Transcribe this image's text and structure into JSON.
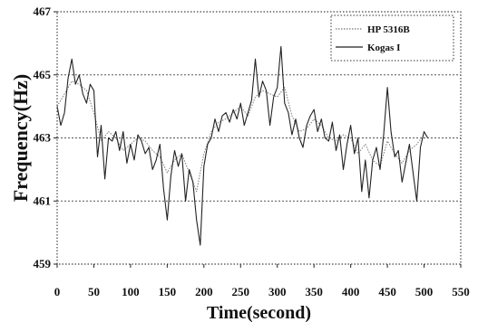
{
  "chart_data": {
    "type": "line",
    "title": "",
    "xlabel": "Time(second)",
    "ylabel": "Frequency(Hz)",
    "xlim": [
      0,
      550
    ],
    "ylim": [
      459,
      467
    ],
    "x_ticks": [
      0,
      50,
      100,
      150,
      200,
      250,
      300,
      350,
      400,
      450,
      500,
      550
    ],
    "y_ticks": [
      459,
      461,
      463,
      465,
      467
    ],
    "grid": "horizontal dashed at y tick values",
    "legend_position": "top-right",
    "series": [
      {
        "name": "HP 5316B",
        "style": "dotted",
        "color": "#777777",
        "x": [
          0,
          10,
          20,
          30,
          40,
          50,
          60,
          70,
          80,
          90,
          100,
          110,
          120,
          130,
          140,
          150,
          160,
          170,
          180,
          190,
          200,
          210,
          220,
          230,
          240,
          250,
          260,
          270,
          280,
          290,
          300,
          310,
          320,
          330,
          340,
          350,
          360,
          370,
          380,
          390,
          400,
          410,
          420,
          430,
          440,
          450,
          460,
          470,
          480,
          490,
          500
        ],
        "y": [
          464.0,
          464.4,
          464.8,
          464.7,
          464.5,
          463.8,
          462.9,
          463.2,
          463.0,
          462.6,
          462.8,
          463.0,
          462.9,
          462.6,
          462.4,
          461.9,
          462.3,
          462.5,
          461.9,
          461.3,
          462.5,
          463.2,
          463.5,
          463.6,
          463.8,
          464.0,
          463.7,
          464.3,
          464.5,
          464.4,
          464.3,
          464.6,
          463.7,
          463.2,
          463.3,
          463.6,
          463.4,
          463.0,
          462.9,
          463.1,
          463.0,
          462.5,
          462.8,
          462.3,
          462.1,
          462.9,
          462.5,
          462.2,
          462.6,
          462.8,
          463.1
        ]
      },
      {
        "name": "Kogas I",
        "style": "solid",
        "color": "#222222",
        "x": [
          0,
          5,
          10,
          15,
          20,
          25,
          30,
          35,
          40,
          45,
          50,
          55,
          60,
          65,
          70,
          75,
          80,
          85,
          90,
          95,
          100,
          105,
          110,
          115,
          120,
          125,
          130,
          135,
          140,
          145,
          150,
          155,
          160,
          165,
          170,
          175,
          180,
          185,
          190,
          195,
          200,
          205,
          210,
          215,
          220,
          225,
          230,
          235,
          240,
          245,
          250,
          255,
          260,
          265,
          270,
          275,
          280,
          285,
          290,
          295,
          300,
          305,
          310,
          315,
          320,
          325,
          330,
          335,
          340,
          345,
          350,
          355,
          360,
          365,
          370,
          375,
          380,
          385,
          390,
          395,
          400,
          405,
          410,
          415,
          420,
          425,
          430,
          435,
          440,
          445,
          450,
          455,
          460,
          465,
          470,
          475,
          480,
          485,
          490,
          495,
          500,
          505
        ],
        "y": [
          464.0,
          463.4,
          463.8,
          464.9,
          465.5,
          464.7,
          465.0,
          464.4,
          464.1,
          464.7,
          464.5,
          462.4,
          463.4,
          461.7,
          463.0,
          462.9,
          463.2,
          462.6,
          463.2,
          462.2,
          462.8,
          462.3,
          463.1,
          462.9,
          462.5,
          462.7,
          462.0,
          462.3,
          462.8,
          461.4,
          460.4,
          461.8,
          462.6,
          462.1,
          462.5,
          461.0,
          462.0,
          461.6,
          460.4,
          459.6,
          462.1,
          462.8,
          463.0,
          463.6,
          463.2,
          463.7,
          463.8,
          463.5,
          463.9,
          463.6,
          464.1,
          463.4,
          463.8,
          464.2,
          465.5,
          464.3,
          464.8,
          464.5,
          463.4,
          464.3,
          464.6,
          465.9,
          464.1,
          463.8,
          463.1,
          463.6,
          463.0,
          462.7,
          463.4,
          463.7,
          463.9,
          463.2,
          463.6,
          463.0,
          462.9,
          463.5,
          462.6,
          463.1,
          462.0,
          462.8,
          463.4,
          462.5,
          463.0,
          461.3,
          462.3,
          461.1,
          462.3,
          462.7,
          462.0,
          463.1,
          464.6,
          463.2,
          462.4,
          462.6,
          461.6,
          462.2,
          462.8,
          461.9,
          461.0,
          462.7,
          463.2,
          463.0
        ]
      }
    ]
  }
}
